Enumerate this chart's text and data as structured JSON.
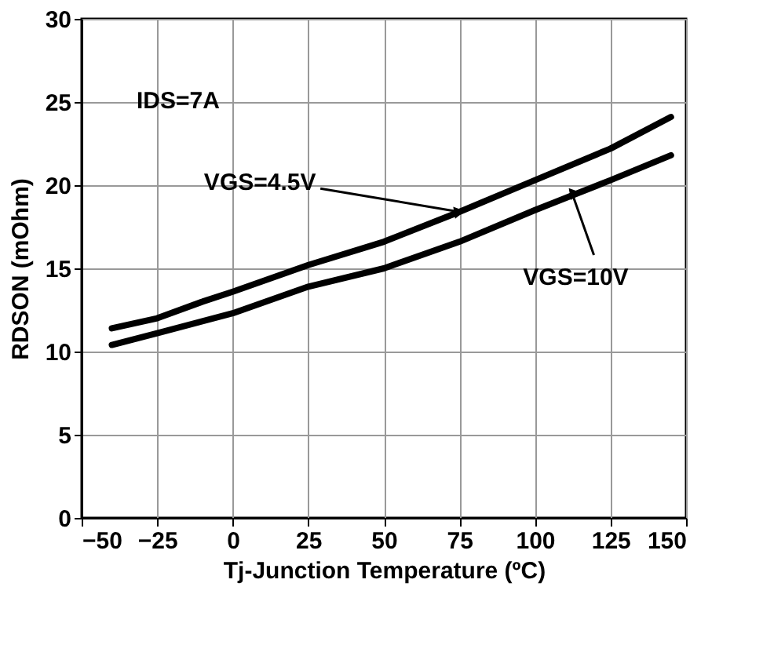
{
  "chart_data": {
    "type": "line",
    "xlabel": "Tj-Junction Temperature (ºC)",
    "ylabel": "RDSON (mOhm)",
    "xlim": [
      -50,
      150
    ],
    "xticks": [
      -50,
      -25,
      0,
      25,
      50,
      75,
      100,
      125,
      150
    ],
    "ylim": [
      0,
      30
    ],
    "yticks": [
      0,
      5,
      10,
      15,
      20,
      25,
      30
    ],
    "grid": true,
    "line_style": "solid",
    "annotations": [
      "IDS=7A"
    ],
    "series": [
      {
        "name": "VGS=4.5V",
        "color": "#000000",
        "x": [
          -40,
          -25,
          -10,
          0,
          25,
          50,
          75,
          100,
          125,
          145
        ],
        "values": [
          11.4,
          12.0,
          13.0,
          13.6,
          15.2,
          16.6,
          18.4,
          20.3,
          22.2,
          24.1
        ]
      },
      {
        "name": "VGS=10V",
        "color": "#000000",
        "x": [
          -40,
          -25,
          0,
          25,
          50,
          75,
          100,
          125,
          145
        ],
        "values": [
          10.4,
          11.1,
          12.3,
          13.9,
          15.0,
          16.6,
          18.5,
          20.3,
          21.8
        ]
      }
    ]
  }
}
